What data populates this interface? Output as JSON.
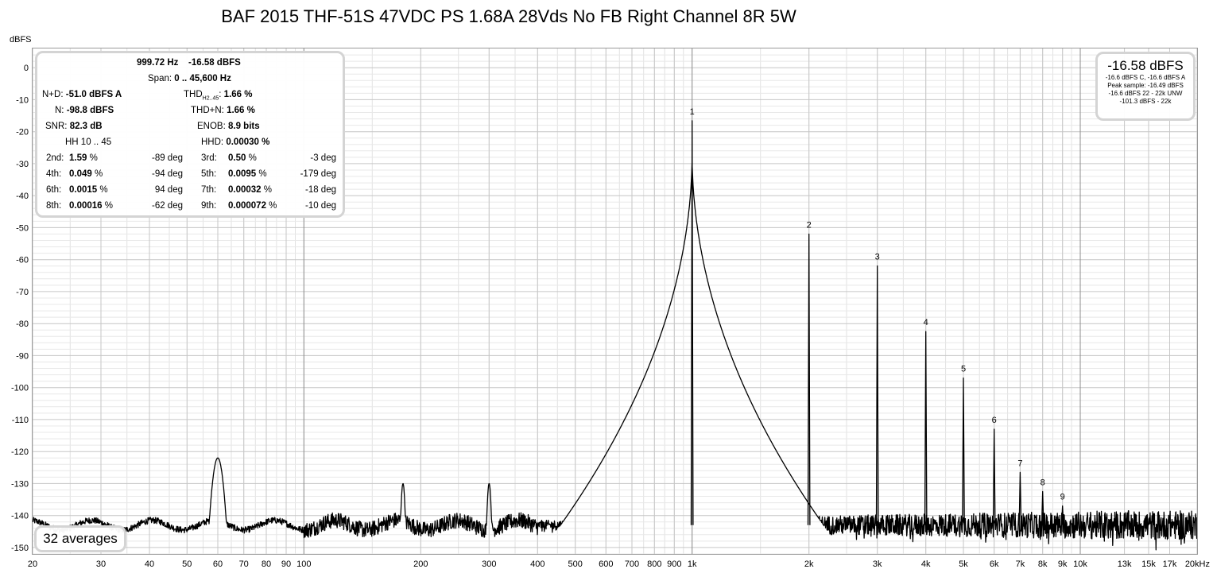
{
  "chart_data": {
    "type": "line",
    "title": "BAF 2015 THF-51S 47VDC PS 1.68A 28Vds No FB Right Channel 8R 5W",
    "ylabel": "dBFS",
    "xscale": "log",
    "xlim": [
      20,
      20000
    ],
    "ylim": [
      -152,
      6
    ],
    "y_ticks": [
      0,
      -10,
      -20,
      -30,
      -40,
      -50,
      -60,
      -70,
      -80,
      -90,
      -100,
      -110,
      -120,
      -130,
      -140,
      -150
    ],
    "y_tick_labels": [
      "0",
      "-10",
      "-20",
      "-30",
      "-40",
      "-50",
      "-60",
      "-70",
      "-80",
      "-90",
      "-100",
      "-110",
      "-120",
      "-130",
      "-140",
      "-150"
    ],
    "x_ticks": [
      20,
      30,
      40,
      50,
      60,
      70,
      80,
      90,
      100,
      200,
      300,
      400,
      500,
      600,
      700,
      800,
      900,
      1000,
      2000,
      3000,
      4000,
      5000,
      6000,
      7000,
      8000,
      9000,
      10000,
      13000,
      15000,
      17000,
      20000
    ],
    "x_tick_labels": [
      "20",
      "30",
      "40",
      "50",
      "60",
      "70",
      "80",
      "90",
      "100",
      "200",
      "300",
      "400",
      "500",
      "600",
      "700",
      "800",
      "900",
      "1k",
      "2k",
      "3k",
      "4k",
      "5k",
      "6k",
      "7k",
      "8k",
      "9k",
      "10k",
      "13k",
      "15k",
      "17k",
      "20kHz"
    ],
    "grid": true,
    "noise_floor_dbfs": -143,
    "spurs": [
      {
        "x": 60,
        "y": -122
      },
      {
        "x": 180,
        "y": -130
      },
      {
        "x": 300,
        "y": -130
      }
    ],
    "harmonics": [
      {
        "label": "1",
        "x": 1000,
        "y": -16.58
      },
      {
        "label": "2",
        "x": 2000,
        "y": -52
      },
      {
        "label": "3",
        "x": 3000,
        "y": -62
      },
      {
        "label": "4",
        "x": 4000,
        "y": -82.5
      },
      {
        "label": "5",
        "x": 5000,
        "y": -97
      },
      {
        "label": "6",
        "x": 6000,
        "y": -113
      },
      {
        "label": "7",
        "x": 7000,
        "y": -126.5
      },
      {
        "label": "8",
        "x": 8000,
        "y": -132.5
      },
      {
        "label": "9",
        "x": 9000,
        "y": -137
      }
    ],
    "color": "#000000"
  },
  "stats": {
    "fund_freq": "999.72 Hz",
    "fund_level": "-16.58 dBFS",
    "span_label": "Span:",
    "span_value": "0 .. 45,600 Hz",
    "nd_label": "N+D:",
    "nd_value": "-51.0 dBFS A",
    "thd_label": "THD",
    "thd_sub": "H2..45",
    "thd_value": "1.66 %",
    "n_label": "N:",
    "n_value": "-98.8 dBFS",
    "thdn_label": "THD+N:",
    "thdn_value": "1.66 %",
    "snr_label": "SNR:",
    "snr_value": "82.3 dB",
    "enob_label": "ENOB:",
    "enob_value": "8.9 bits",
    "hh_label": "HH 10 .. 45",
    "hhd_label": "HHD:",
    "hhd_value": "0.00030 %",
    "harmonics": [
      {
        "name": "2nd:",
        "value": "1.59",
        "unit": "%",
        "phase": "-89 deg"
      },
      {
        "name": "3rd:",
        "value": "0.50",
        "unit": "%",
        "phase": "-3 deg"
      },
      {
        "name": "4th:",
        "value": "0.049",
        "unit": "%",
        "phase": "-94 deg"
      },
      {
        "name": "5th:",
        "value": "0.0095",
        "unit": "%",
        "phase": "-179 deg"
      },
      {
        "name": "6th:",
        "value": "0.0015",
        "unit": "%",
        "phase": "94 deg"
      },
      {
        "name": "7th:",
        "value": "0.00032",
        "unit": "%",
        "phase": "-18 deg"
      },
      {
        "name": "8th:",
        "value": "0.00016",
        "unit": "%",
        "phase": "-62 deg"
      },
      {
        "name": "9th:",
        "value": "0.000072",
        "unit": "%",
        "phase": "-10 deg"
      }
    ]
  },
  "peak_box": {
    "main": "-16.58 dBFS",
    "line1": "-16.6 dBFS C, -16.6 dBFS A",
    "line2": "Peak sample: -16.49 dBFS",
    "line3": "-16.6 dBFS 22 - 22k UNW",
    "line4": "-101.3 dBFS - 22k"
  },
  "averages": "32 averages"
}
